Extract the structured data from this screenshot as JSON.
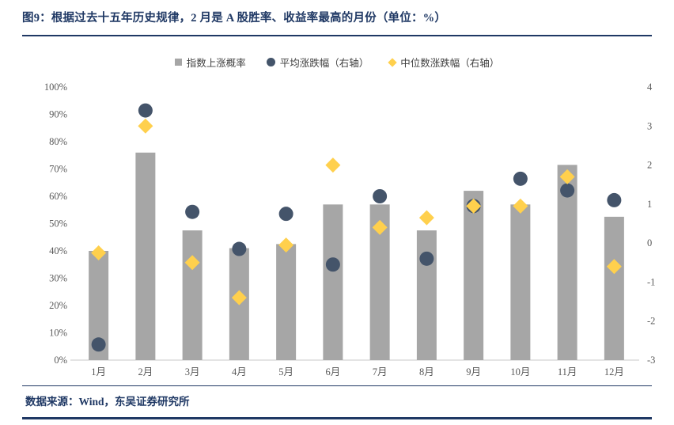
{
  "header": {
    "title": "图9：根据过去十五年历史规律，2 月是 A 股胜率、收益率最高的月份（单位：%）"
  },
  "footer": {
    "source": "数据来源：Wind，东吴证券研究所"
  },
  "colors": {
    "navy": "#1f3864",
    "bar": "#a6a6a6",
    "dot": "#44546a",
    "diamond": "#ffd04d",
    "axis_text": "#595959",
    "axis_line": "#c8c8c8"
  },
  "chart_data": {
    "type": "bar",
    "title": "图9：根据过去十五年历史规律，2 月是 A 股胜率、收益率最高的月份（单位：%）",
    "categories": [
      "1月",
      "2月",
      "3月",
      "4月",
      "5月",
      "6月",
      "7月",
      "8月",
      "9月",
      "10月",
      "11月",
      "12月"
    ],
    "series": [
      {
        "name": "指数上涨概率",
        "marker": "bar",
        "axis": "left",
        "values": [
          40,
          76,
          47.5,
          41,
          42.5,
          57,
          57,
          47.5,
          62,
          57,
          71.5,
          52.5
        ]
      },
      {
        "name": "平均涨跌幅（右轴）",
        "marker": "circle",
        "axis": "right",
        "values": [
          -2.6,
          3.4,
          0.8,
          -0.15,
          0.75,
          -0.55,
          1.2,
          -0.4,
          0.95,
          1.65,
          1.35,
          1.1
        ]
      },
      {
        "name": "中位数涨跌幅（右轴）",
        "marker": "diamond",
        "axis": "right",
        "values": [
          -0.25,
          3.0,
          -0.5,
          -1.4,
          -0.05,
          2.0,
          0.4,
          0.65,
          0.95,
          0.95,
          1.7,
          -0.6
        ]
      }
    ],
    "left_axis": {
      "min": 0,
      "max": 100,
      "ticks": [
        "0%",
        "10%",
        "20%",
        "30%",
        "40%",
        "50%",
        "60%",
        "70%",
        "80%",
        "90%",
        "100%"
      ]
    },
    "right_axis": {
      "min": -3,
      "max": 4,
      "ticks": [
        "-3",
        "-2",
        "-1",
        "0",
        "1",
        "2",
        "3",
        "4"
      ]
    },
    "legend_position": "top",
    "grid": false
  }
}
